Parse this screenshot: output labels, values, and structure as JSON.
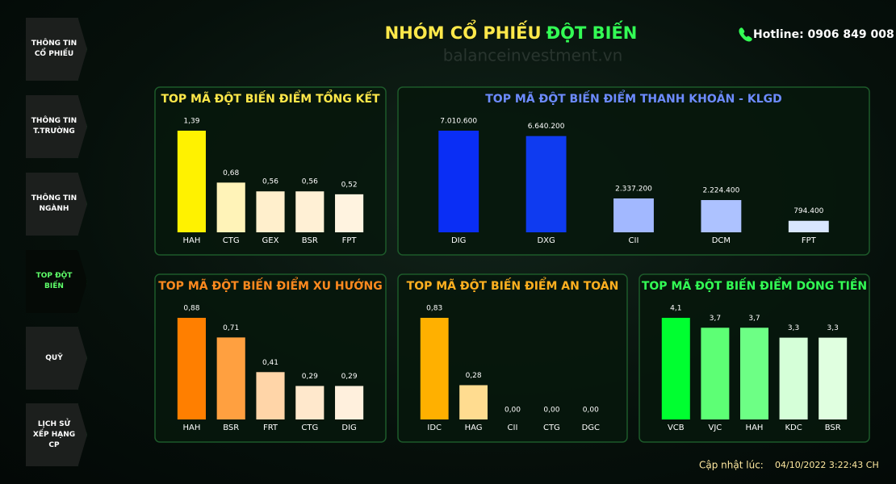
{
  "nav": {
    "items": [
      "THÔNG TIN CỔ PHIẾU",
      "THÔNG TIN T.TRƯỜNG",
      "THÔNG TIN NGÀNH",
      "TOP ĐỘT BIẾN",
      "QUỸ",
      "LỊCH SỬ XẾP HẠNG CP"
    ]
  },
  "header": {
    "title_part1": "NHÓM CỔ PHIẾU",
    "title_part2": "ĐỘT BIẾN",
    "watermark": "balanceinvestment.vn",
    "hotline": "Hotline: 0906 849 008"
  },
  "footer": {
    "update_label": "Cập nhật lúc:",
    "update_time": "04/10/2022 3:22:43 CH"
  },
  "chart_data": [
    {
      "type": "bar",
      "title": "TOP MÃ ĐỘT BIẾN ĐIỂM TỔNG KẾT",
      "title_color": "#ffe84a",
      "categories": [
        "HAH",
        "CTG",
        "GEX",
        "BSR",
        "FPT"
      ],
      "values": [
        1.39,
        0.68,
        0.56,
        0.56,
        0.52
      ],
      "value_labels": [
        "1,39",
        "0,68",
        "0,56",
        "0,56",
        "0,52"
      ],
      "colors": [
        "#fff200",
        "#fff3b8",
        "#ffefcc",
        "#fff0d5",
        "#fff3e0"
      ]
    },
    {
      "type": "bar",
      "title": "TOP MÃ ĐỘT BIẾN ĐIỂM THANH KHOẢN - KLGD",
      "title_color": "#6d8bff",
      "categories": [
        "DIG",
        "DXG",
        "CII",
        "DCM",
        "FPT"
      ],
      "values": [
        7010600,
        6640200,
        2337200,
        2224400,
        794400
      ],
      "value_labels": [
        "7.010.600",
        "6.640.200",
        "2.337.200",
        "2.224.400",
        "794.400"
      ],
      "colors": [
        "#0a2ef5",
        "#0f3bf0",
        "#a2b8ff",
        "#adc2ff",
        "#d8e6ff"
      ]
    },
    {
      "type": "bar",
      "title": "TOP MÃ ĐỘT BIẾN ĐIỂM XU HƯỚNG",
      "title_color": "#ff8a1f",
      "categories": [
        "HAH",
        "BSR",
        "FRT",
        "CTG",
        "DIG"
      ],
      "values": [
        0.88,
        0.71,
        0.41,
        0.29,
        0.29
      ],
      "value_labels": [
        "0,88",
        "0,71",
        "0,41",
        "0,29",
        "0,29"
      ],
      "colors": [
        "#ff7f00",
        "#ffa040",
        "#ffd5a8",
        "#ffe8cc",
        "#fff0dd"
      ]
    },
    {
      "type": "bar",
      "title": "TOP MÃ ĐỘT BIẾN ĐIỂM AN TOÀN",
      "title_color": "#ffb020",
      "categories": [
        "IDC",
        "HAG",
        "CII",
        "CTG",
        "DGC"
      ],
      "values": [
        0.83,
        0.28,
        0,
        0,
        0
      ],
      "value_labels": [
        "0,83",
        "0,28",
        "0,00",
        "0,00",
        "0,00"
      ],
      "colors": [
        "#ffb000",
        "#ffdc90",
        "#ffe8c0",
        "#ffe8c0",
        "#ffe8c0"
      ]
    },
    {
      "type": "bar",
      "title": "TOP MÃ ĐỘT BIẾN ĐIỂM DÒNG TIỀN",
      "title_color": "#33ff55",
      "categories": [
        "VCB",
        "VJC",
        "HAH",
        "KDC",
        "BSR"
      ],
      "values": [
        4.1,
        3.7,
        3.7,
        3.3,
        3.3
      ],
      "value_labels": [
        "4,1",
        "3,7",
        "3,7",
        "3,3",
        "3,3"
      ],
      "colors": [
        "#00ff30",
        "#5dff75",
        "#6dff85",
        "#d5ffd8",
        "#e0ffe0"
      ]
    }
  ]
}
